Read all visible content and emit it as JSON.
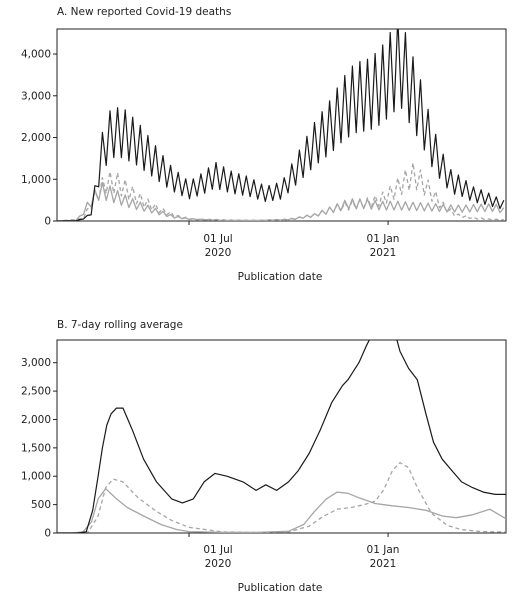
{
  "chart_data": [
    {
      "type": "line",
      "title": "A. New reported Covid-19 deaths",
      "xlabel": "Publication date",
      "ylabel": "",
      "x_ticks": [
        {
          "date": "2020-07-01",
          "day": "01 Jul",
          "year": "2020"
        },
        {
          "date": "2021-01-01",
          "day": "01 Jan",
          "year": "2021"
        }
      ],
      "xlim": [
        "2020-03-01",
        "2021-04-20"
      ],
      "ylim": [
        0,
        4600
      ],
      "y_ticks": [
        0,
        1000,
        2000,
        3000,
        4000
      ],
      "y_tick_labels": [
        "0",
        "1,000",
        "2,000",
        "3,000",
        "4,000"
      ],
      "grid": false,
      "series": [
        {
          "style": "solid-black",
          "color": "#1a1a1a",
          "x": [
            "2020-03-01",
            "2020-03-20",
            "2020-04-01",
            "2020-04-07",
            "2020-04-12",
            "2020-04-20",
            "2020-05-01",
            "2020-05-15",
            "2020-06-01",
            "2020-06-15",
            "2020-07-01",
            "2020-07-15",
            "2020-07-25",
            "2020-08-10",
            "2020-08-25",
            "2020-09-10",
            "2020-09-25",
            "2020-10-10",
            "2020-10-25",
            "2020-11-10",
            "2020-11-20",
            "2020-12-01",
            "2020-12-15",
            "2020-12-25",
            "2021-01-05",
            "2021-01-12",
            "2021-01-20",
            "2021-02-01",
            "2021-02-10",
            "2021-02-20",
            "2021-03-01",
            "2021-03-10",
            "2021-03-20",
            "2021-04-01",
            "2021-04-10",
            "2021-04-20"
          ],
          "y": [
            0,
            5,
            150,
            1000,
            1800,
            2300,
            2300,
            2000,
            1500,
            1100,
            800,
            1000,
            1200,
            1000,
            900,
            700,
            800,
            1400,
            2000,
            2500,
            2900,
            3200,
            3300,
            3500,
            3900,
            4200,
            3600,
            2800,
            2000,
            1400,
            1000,
            900,
            700,
            600,
            500,
            400
          ]
        },
        {
          "style": "solid-grey",
          "color": "#a6a6a6",
          "x": [
            "2020-03-01",
            "2020-03-20",
            "2020-04-01",
            "2020-04-10",
            "2020-04-20",
            "2020-05-01",
            "2020-05-15",
            "2020-06-01",
            "2020-06-15",
            "2020-07-01",
            "2020-08-01",
            "2020-09-01",
            "2020-10-01",
            "2020-10-25",
            "2020-11-10",
            "2020-11-25",
            "2020-12-10",
            "2020-12-25",
            "2021-01-10",
            "2021-01-25",
            "2021-02-10",
            "2021-02-25",
            "2021-03-10",
            "2021-03-25",
            "2021-04-10",
            "2021-04-20"
          ],
          "y": [
            0,
            20,
            500,
            800,
            700,
            550,
            400,
            250,
            120,
            50,
            20,
            15,
            40,
            150,
            300,
            450,
            450,
            400,
            400,
            380,
            360,
            330,
            320,
            340,
            350,
            250
          ]
        },
        {
          "style": "dashed-grey",
          "color": "#a6a6a6",
          "x": [
            "2020-03-01",
            "2020-03-25",
            "2020-04-05",
            "2020-04-15",
            "2020-04-25",
            "2020-05-05",
            "2020-05-20",
            "2020-06-05",
            "2020-06-20",
            "2020-07-01",
            "2020-08-01",
            "2020-09-01",
            "2020-10-01",
            "2020-10-25",
            "2020-11-10",
            "2020-11-25",
            "2020-12-10",
            "2020-12-25",
            "2021-01-05",
            "2021-01-15",
            "2021-01-25",
            "2021-02-05",
            "2021-02-20",
            "2021-03-05",
            "2021-03-20",
            "2021-04-05",
            "2021-04-20"
          ],
          "y": [
            0,
            50,
            600,
            1000,
            1000,
            800,
            500,
            280,
            120,
            60,
            25,
            15,
            30,
            150,
            300,
            400,
            450,
            550,
            750,
            1000,
            1200,
            900,
            400,
            150,
            80,
            40,
            30
          ]
        }
      ]
    },
    {
      "type": "line",
      "title": "B. 7-day rolling average",
      "xlabel": "Publication date",
      "ylabel": "",
      "x_ticks": [
        {
          "date": "2020-07-01",
          "day": "01 Jul",
          "year": "2020"
        },
        {
          "date": "2021-01-01",
          "day": "01 Jan",
          "year": "2021"
        }
      ],
      "xlim": [
        "2020-03-01",
        "2021-04-20"
      ],
      "ylim": [
        0,
        3400
      ],
      "y_ticks": [
        0,
        500,
        1000,
        1500,
        2000,
        2500,
        3000
      ],
      "y_tick_labels": [
        "0",
        "500",
        "1,000",
        "1,500",
        "2,000",
        "2,500",
        "3,000"
      ],
      "grid": false,
      "series": [
        {
          "style": "solid-black",
          "color": "#1a1a1a",
          "x": [
            "2020-03-01",
            "2020-03-20",
            "2020-03-28",
            "2020-04-03",
            "2020-04-08",
            "2020-04-12",
            "2020-04-16",
            "2020-04-20",
            "2020-04-25",
            "2020-05-01",
            "2020-05-10",
            "2020-05-20",
            "2020-06-01",
            "2020-06-15",
            "2020-06-25",
            "2020-07-05",
            "2020-07-15",
            "2020-07-25",
            "2020-08-05",
            "2020-08-20",
            "2020-09-01",
            "2020-09-10",
            "2020-09-20",
            "2020-10-01",
            "2020-10-10",
            "2020-10-20",
            "2020-10-30",
            "2020-11-10",
            "2020-11-20",
            "2020-11-25",
            "2020-12-05",
            "2020-12-12",
            "2020-12-20",
            "2020-12-28",
            "2021-01-05",
            "2021-01-12",
            "2021-01-20",
            "2021-01-28",
            "2021-02-05",
            "2021-02-12",
            "2021-02-20",
            "2021-03-01",
            "2021-03-10",
            "2021-03-20",
            "2021-03-30",
            "2021-04-10",
            "2021-04-20"
          ],
          "y": [
            0,
            0,
            20,
            400,
            1000,
            1500,
            1900,
            2100,
            2200,
            2200,
            1800,
            1300,
            900,
            600,
            530,
            600,
            900,
            1050,
            1000,
            900,
            750,
            850,
            750,
            900,
            1100,
            1400,
            1800,
            2300,
            2600,
            2700,
            3000,
            3300,
            3600,
            3800,
            3700,
            3200,
            2900,
            2700,
            2100,
            1600,
            1300,
            1100,
            900,
            800,
            720,
            680,
            680
          ]
        },
        {
          "style": "solid-grey",
          "color": "#a6a6a6",
          "x": [
            "2020-03-01",
            "2020-03-15",
            "2020-03-25",
            "2020-04-02",
            "2020-04-08",
            "2020-04-15",
            "2020-04-25",
            "2020-05-05",
            "2020-05-20",
            "2020-06-05",
            "2020-06-20",
            "2020-07-01",
            "2020-08-01",
            "2020-09-01",
            "2020-10-01",
            "2020-10-15",
            "2020-10-25",
            "2020-11-05",
            "2020-11-15",
            "2020-11-25",
            "2020-12-05",
            "2020-12-20",
            "2021-01-05",
            "2021-01-20",
            "2021-02-05",
            "2021-02-20",
            "2021-03-05",
            "2021-03-20",
            "2021-04-05",
            "2021-04-20"
          ],
          "y": [
            0,
            0,
            20,
            200,
            600,
            780,
            600,
            450,
            300,
            150,
            60,
            25,
            10,
            10,
            30,
            150,
            380,
            600,
            720,
            700,
            620,
            520,
            480,
            450,
            400,
            300,
            270,
            320,
            420,
            250
          ]
        },
        {
          "style": "dashed-grey",
          "color": "#a6a6a6",
          "x": [
            "2020-03-01",
            "2020-03-20",
            "2020-03-30",
            "2020-04-08",
            "2020-04-15",
            "2020-04-22",
            "2020-05-01",
            "2020-05-15",
            "2020-06-01",
            "2020-06-15",
            "2020-07-01",
            "2020-08-01",
            "2020-09-01",
            "2020-10-01",
            "2020-10-20",
            "2020-11-01",
            "2020-11-15",
            "2020-11-28",
            "2020-12-10",
            "2020-12-20",
            "2020-12-28",
            "2021-01-05",
            "2021-01-12",
            "2021-01-20",
            "2021-01-28",
            "2021-02-10",
            "2021-02-25",
            "2021-03-10",
            "2021-03-25",
            "2021-04-10",
            "2021-04-20"
          ],
          "y": [
            0,
            0,
            20,
            300,
            800,
            950,
            900,
            620,
            380,
            220,
            100,
            20,
            10,
            20,
            120,
            280,
            420,
            450,
            500,
            560,
            760,
            1100,
            1240,
            1150,
            800,
            350,
            130,
            60,
            30,
            20,
            20
          ]
        }
      ]
    }
  ]
}
